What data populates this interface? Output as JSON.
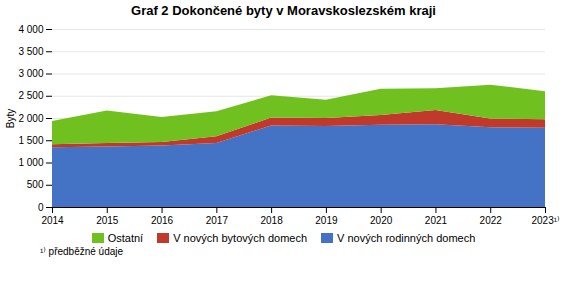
{
  "chart_data": {
    "type": "area",
    "stacked": true,
    "title": "Graf 2 Dokončené byty v Moravskoslezském  kraji",
    "ylabel": "Byty",
    "annotations": [
      "¹⁾ předběžné údaje"
    ],
    "x": [
      2014,
      2015,
      2016,
      2017,
      2018,
      2019,
      2020,
      2021,
      2022,
      2023
    ],
    "series": [
      {
        "name": "V nových rodinných domech",
        "color": "#4472c4",
        "values": [
          1340,
          1360,
          1380,
          1440,
          1830,
          1820,
          1850,
          1860,
          1790,
          1780
        ]
      },
      {
        "name": "V nových bytových domech",
        "color": "#c0392b",
        "values": [
          70,
          80,
          80,
          150,
          180,
          180,
          220,
          320,
          200,
          190
        ]
      },
      {
        "name": "Ostatní",
        "color": "#70c020",
        "values": [
          520,
          730,
          560,
          560,
          500,
          410,
          590,
          490,
          760,
          630
        ]
      }
    ],
    "xlim": [
      2014,
      2023
    ],
    "xticks": [
      2014,
      2015,
      2016,
      2017,
      2018,
      2019,
      2020,
      2021,
      2022,
      {
        "value": 2023,
        "label": "2023¹⁾"
      }
    ],
    "ylim": [
      0,
      4000
    ],
    "yticks": [
      0,
      500,
      {
        "value": 1000,
        "label": "1 000"
      },
      {
        "value": 1500,
        "label": "1 500"
      },
      {
        "value": 2000,
        "label": "2 000"
      },
      {
        "value": 2500,
        "label": "2 500"
      },
      {
        "value": 3000,
        "label": "3 000"
      },
      {
        "value": 3500,
        "label": "3 500"
      },
      {
        "value": 4000,
        "label": "4 000"
      }
    ],
    "grid": true,
    "legend": "bottom"
  }
}
